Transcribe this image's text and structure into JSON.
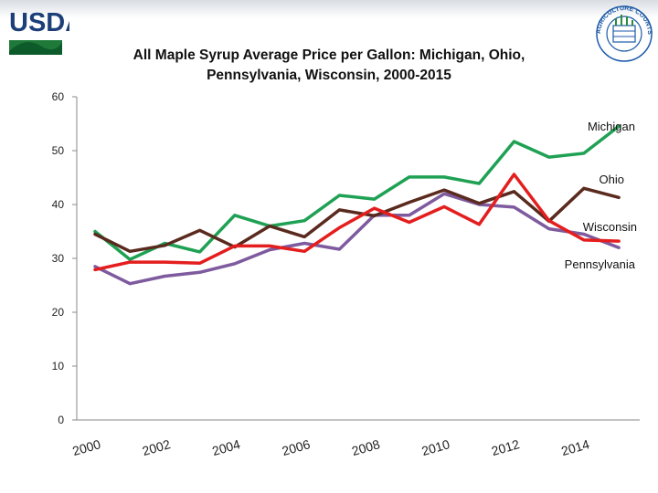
{
  "header": {
    "logo_text": "USDA",
    "seal_text": "AGRICULTURE COUNTS"
  },
  "chart_data": {
    "type": "line",
    "title": "All Maple Syrup Average Price per Gallon:  Michigan, Ohio, Pennsylvania, Wisconsin, 2000-2015",
    "title_lines": [
      "All Maple Syrup Average Price per Gallon:  Michigan, Ohio,",
      "Pennsylvania, Wisconsin, 2000-2015"
    ],
    "xlabel": "",
    "ylabel": "",
    "x": [
      2000,
      2001,
      2002,
      2003,
      2004,
      2005,
      2006,
      2007,
      2008,
      2009,
      2010,
      2011,
      2012,
      2013,
      2014,
      2015
    ],
    "x_tick_labels": [
      "2000",
      "2002",
      "2004",
      "2006",
      "2008",
      "2010",
      "2012",
      "2014"
    ],
    "x_tick_values": [
      2000,
      2002,
      2004,
      2006,
      2008,
      2010,
      2012,
      2014
    ],
    "y_ticks": [
      0,
      10,
      20,
      30,
      40,
      50,
      60
    ],
    "ylim": [
      0,
      60
    ],
    "xlim": [
      2000,
      2015.6
    ],
    "grid": false,
    "legend": "inline labels at right end of each line",
    "series": [
      {
        "name": "Michigan",
        "color": "#1fa154",
        "values": [
          35.0,
          29.8,
          32.8,
          31.2,
          38.0,
          36.0,
          37.0,
          41.7,
          41.0,
          45.1,
          45.1,
          43.9,
          51.7,
          48.8,
          49.5,
          54.5
        ]
      },
      {
        "name": "Ohio",
        "color": "#5a2a1e",
        "values": [
          34.5,
          31.3,
          32.4,
          35.2,
          32.1,
          36.0,
          34.0,
          39.0,
          37.9,
          40.4,
          42.7,
          40.2,
          42.4,
          36.9,
          43.0,
          41.3
        ]
      },
      {
        "name": "Wisconsin",
        "color": "#e41e1e",
        "values": [
          27.9,
          29.3,
          29.3,
          29.1,
          32.3,
          32.3,
          31.3,
          35.7,
          39.3,
          36.7,
          39.6,
          36.3,
          45.6,
          37.0,
          33.4,
          33.2
        ]
      },
      {
        "name": "Pennsylvania",
        "color": "#7e5a9e",
        "values": [
          28.5,
          25.3,
          26.7,
          27.4,
          29.0,
          31.6,
          32.8,
          31.7,
          38.0,
          38.0,
          42.0,
          40.0,
          39.5,
          35.5,
          34.5,
          32.0
        ]
      }
    ]
  }
}
